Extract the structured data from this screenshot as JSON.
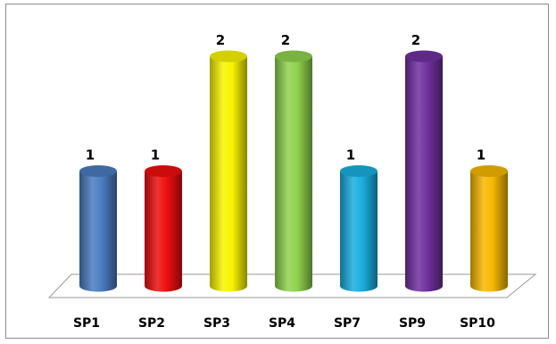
{
  "chart_data": {
    "type": "bar",
    "style": "3d-cylinder",
    "categories": [
      "SP1",
      "SP2",
      "SP3",
      "SP4",
      "SP7",
      "SP9",
      "SP10"
    ],
    "values": [
      1,
      1,
      2,
      2,
      1,
      2,
      1
    ],
    "colors": [
      "#4a7cc0",
      "#ee0e0e",
      "#f8f400",
      "#8fd24e",
      "#1aaedf",
      "#7030a0",
      "#f5b800"
    ],
    "data_labels": [
      "1",
      "1",
      "2",
      "2",
      "1",
      "2",
      "1"
    ],
    "title": "",
    "xlabel": "",
    "ylabel": "",
    "ylim": [
      0,
      2
    ],
    "grid": false,
    "legend": "none"
  }
}
